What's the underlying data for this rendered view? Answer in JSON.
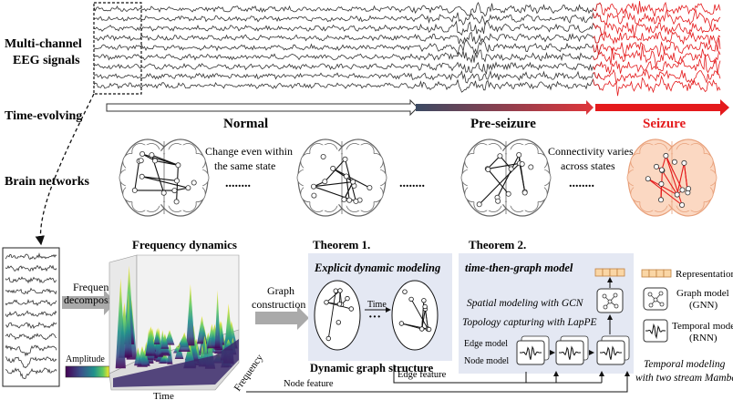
{
  "row_labels": {
    "eeg_line1": "Multi-channel",
    "eeg_line2": "EEG signals",
    "time_evolving": "Time-evolving",
    "brain_networks": "Brain networks"
  },
  "states": {
    "normal": "Normal",
    "preseizure": "Pre-seizure",
    "seizure": "Seizure"
  },
  "notes": {
    "within_line1": "Change even within",
    "within_line2": "the same state",
    "across_line1": "Connectivity varies",
    "across_line2": "across states",
    "ellipsis": "........"
  },
  "bottom": {
    "frequency_dynamics": "Frequency dynamics",
    "freq_decomp_line1": "Frequency",
    "freq_decomp_line2": "decomposition",
    "amplitude": "Amplitude",
    "time_axis": "Time",
    "frequency_axis": "Frequency",
    "graph_construction_line1": "Graph",
    "graph_construction_line2": "construction",
    "theorem1": "Theorem 1.",
    "theorem2": "Theorem 2.",
    "explicit_dynamic": "Explicit dynamic modeling",
    "time_label": "Time",
    "dynamic_graph_structure": "Dynamic graph structure",
    "time_then_graph": "time-then-graph model",
    "spatial_gcn": "Spatial modeling with GCN",
    "topology_lappe": "Topology capturing with LapPE",
    "edge_model": "Edge model",
    "node_model": "Node model",
    "edge_feature": "Edge feature",
    "node_feature": "Node feature",
    "legend_representation": "Representation",
    "legend_graph_line1": "Graph model",
    "legend_graph_line2": "(GNN)",
    "legend_temporal_line1": "Temporal model",
    "legend_temporal_line2": "(RNN)",
    "mamba_line1": "Temporal modeling",
    "mamba_line2": "with two stream Mamba"
  },
  "colors": {
    "seizure": "#e41a1c",
    "preseizure_start": "#3b4a63",
    "panel_bg": "#e4e8f3",
    "brain_seizure_fill": "#fbd8c2"
  }
}
